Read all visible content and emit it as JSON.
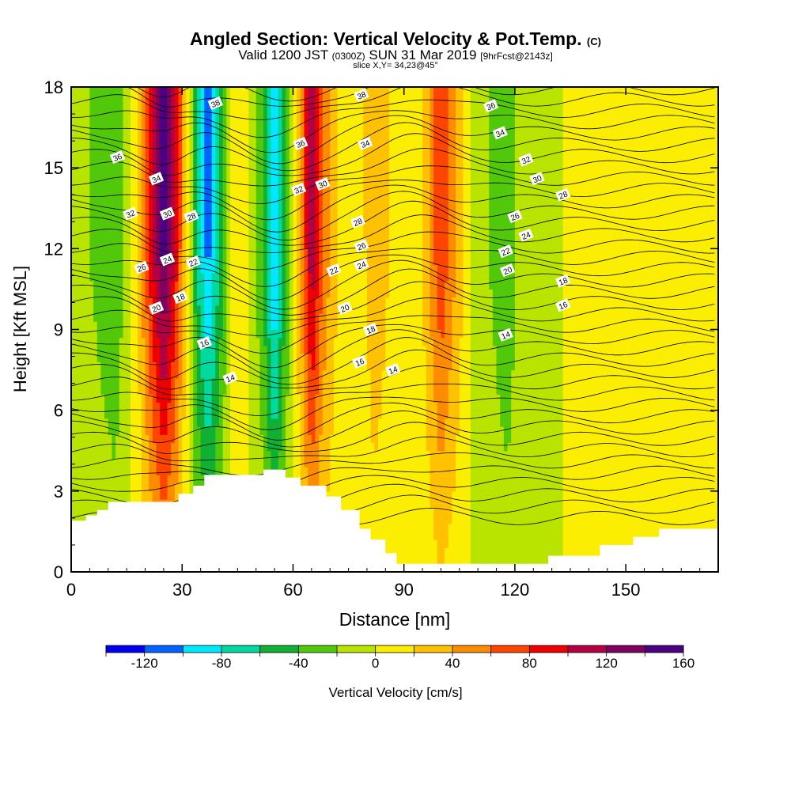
{
  "header": {
    "title_main": "Angled Section: Vertical Velocity & Pot.Temp.",
    "title_flag": "(C)",
    "valid_a": "Valid 1200 JST",
    "valid_b": "(0300Z)",
    "valid_c": "SUN 31 Mar 2019",
    "valid_d": "[9hrFcst@2143z]",
    "slice": "slice X,Y= 34,23@45°"
  },
  "chart_data": {
    "type": "heatmap",
    "title": "Angled Section: Vertical Velocity & Pot.Temp.",
    "xlabel": "Distance [nm]",
    "ylabel": "Height [Kft MSL]",
    "xlim": [
      0,
      175
    ],
    "ylim": [
      0,
      18
    ],
    "x_ticks": [
      0,
      30,
      60,
      90,
      120,
      150
    ],
    "y_ticks": [
      0,
      3,
      6,
      9,
      12,
      15,
      18
    ],
    "colorbar": {
      "label": "Vertical Velocity [cm/s]",
      "boundaries": [
        -140,
        -120,
        -100,
        -80,
        -60,
        -40,
        -20,
        0,
        20,
        40,
        60,
        80,
        100,
        120,
        140,
        160
      ],
      "tick_labels": [
        "-120",
        "-80",
        "-40",
        "0",
        "40",
        "80",
        "120",
        "160"
      ],
      "tick_values": [
        -120,
        -80,
        -40,
        0,
        40,
        80,
        120,
        160
      ],
      "colors": [
        "#0000ee",
        "#0063ff",
        "#00e8ff",
        "#00d9a0",
        "#10b035",
        "#52c80a",
        "#b8e400",
        "#fbee00",
        "#ffc100",
        "#ff8c00",
        "#ff4500",
        "#ee0000",
        "#b20044",
        "#800060",
        "#4b0082"
      ]
    },
    "velocity_columns": [
      {
        "x": 5,
        "v": -20
      },
      {
        "x": 12,
        "v": -40
      },
      {
        "x": 18,
        "v": 20
      },
      {
        "x": 22,
        "v": 100
      },
      {
        "x": 25,
        "v": 150
      },
      {
        "x": 28,
        "v": 100
      },
      {
        "x": 31,
        "v": 20
      },
      {
        "x": 34,
        "v": -60
      },
      {
        "x": 37,
        "v": -110
      },
      {
        "x": 40,
        "v": -60
      },
      {
        "x": 44,
        "v": 20
      },
      {
        "x": 48,
        "v": 0
      },
      {
        "x": 52,
        "v": -40
      },
      {
        "x": 55,
        "v": -110
      },
      {
        "x": 58,
        "v": -40
      },
      {
        "x": 62,
        "v": 40
      },
      {
        "x": 65,
        "v": 120
      },
      {
        "x": 68,
        "v": 60
      },
      {
        "x": 72,
        "v": 20
      },
      {
        "x": 77,
        "v": 0
      },
      {
        "x": 82,
        "v": 40
      },
      {
        "x": 86,
        "v": 20
      },
      {
        "x": 90,
        "v": 0
      },
      {
        "x": 95,
        "v": 20
      },
      {
        "x": 100,
        "v": 80
      },
      {
        "x": 104,
        "v": 40
      },
      {
        "x": 108,
        "v": 0
      },
      {
        "x": 113,
        "v": -20
      },
      {
        "x": 118,
        "v": -40
      },
      {
        "x": 123,
        "v": 0
      },
      {
        "x": 128,
        "v": -20
      },
      {
        "x": 133,
        "v": 0
      },
      {
        "x": 138,
        "v": 20
      },
      {
        "x": 143,
        "v": 0
      },
      {
        "x": 150,
        "v": 0
      },
      {
        "x": 158,
        "v": 20
      },
      {
        "x": 165,
        "v": 0
      },
      {
        "x": 175,
        "v": 0
      }
    ],
    "terrain_height_kft": [
      {
        "x": 0,
        "h": 1.9
      },
      {
        "x": 4,
        "h": 2.1
      },
      {
        "x": 7,
        "h": 2.3
      },
      {
        "x": 10,
        "h": 2.6
      },
      {
        "x": 29,
        "h": 2.9
      },
      {
        "x": 33,
        "h": 3.2
      },
      {
        "x": 36,
        "h": 3.6
      },
      {
        "x": 52,
        "h": 3.8
      },
      {
        "x": 58,
        "h": 3.5
      },
      {
        "x": 62,
        "h": 3.2
      },
      {
        "x": 69,
        "h": 2.8
      },
      {
        "x": 73,
        "h": 2.3
      },
      {
        "x": 78,
        "h": 1.6
      },
      {
        "x": 81,
        "h": 1.2
      },
      {
        "x": 85,
        "h": 0.7
      },
      {
        "x": 88,
        "h": 0.3
      },
      {
        "x": 129,
        "h": 0.6
      },
      {
        "x": 143,
        "h": 1.0
      },
      {
        "x": 152,
        "h": 1.3
      },
      {
        "x": 159,
        "h": 1.6
      },
      {
        "x": 175,
        "h": 1.6
      }
    ],
    "contour_labels": [
      {
        "text": "36",
        "x": 12.5,
        "y": 15.4
      },
      {
        "text": "32",
        "x": 16,
        "y": 13.3
      },
      {
        "text": "26",
        "x": 19,
        "y": 11.3
      },
      {
        "text": "34",
        "x": 23,
        "y": 14.6
      },
      {
        "text": "30",
        "x": 26,
        "y": 13.3
      },
      {
        "text": "24",
        "x": 26,
        "y": 11.6
      },
      {
        "text": "20",
        "x": 23,
        "y": 9.8
      },
      {
        "text": "28",
        "x": 32.5,
        "y": 13.2
      },
      {
        "text": "22",
        "x": 33,
        "y": 11.5
      },
      {
        "text": "18",
        "x": 29.5,
        "y": 10.2
      },
      {
        "text": "16",
        "x": 36,
        "y": 8.5
      },
      {
        "text": "14",
        "x": 43,
        "y": 7.2
      },
      {
        "text": "38",
        "x": 39,
        "y": 17.4
      },
      {
        "text": "36",
        "x": 62,
        "y": 15.9
      },
      {
        "text": "32",
        "x": 61.5,
        "y": 14.2
      },
      {
        "text": "30",
        "x": 68,
        "y": 14.4
      },
      {
        "text": "38",
        "x": 78.5,
        "y": 17.7
      },
      {
        "text": "34",
        "x": 79.5,
        "y": 15.9
      },
      {
        "text": "28",
        "x": 77.5,
        "y": 13.0
      },
      {
        "text": "26",
        "x": 78.5,
        "y": 12.1
      },
      {
        "text": "24",
        "x": 78.5,
        "y": 11.4
      },
      {
        "text": "22",
        "x": 71,
        "y": 11.2
      },
      {
        "text": "20",
        "x": 74,
        "y": 9.8
      },
      {
        "text": "18",
        "x": 81,
        "y": 9.0
      },
      {
        "text": "16",
        "x": 78,
        "y": 7.8
      },
      {
        "text": "14",
        "x": 87,
        "y": 7.5
      },
      {
        "text": "36",
        "x": 113.5,
        "y": 17.3
      },
      {
        "text": "34",
        "x": 116,
        "y": 16.3
      },
      {
        "text": "32",
        "x": 123,
        "y": 15.3
      },
      {
        "text": "30",
        "x": 126,
        "y": 14.6
      },
      {
        "text": "28",
        "x": 133,
        "y": 14.0
      },
      {
        "text": "26",
        "x": 120,
        "y": 13.2
      },
      {
        "text": "24",
        "x": 123,
        "y": 12.5
      },
      {
        "text": "22",
        "x": 117.5,
        "y": 11.9
      },
      {
        "text": "20",
        "x": 118,
        "y": 11.2
      },
      {
        "text": "18",
        "x": 133,
        "y": 10.8
      },
      {
        "text": "16",
        "x": 133,
        "y": 9.9
      },
      {
        "text": "14",
        "x": 117.5,
        "y": 8.8
      }
    ]
  }
}
